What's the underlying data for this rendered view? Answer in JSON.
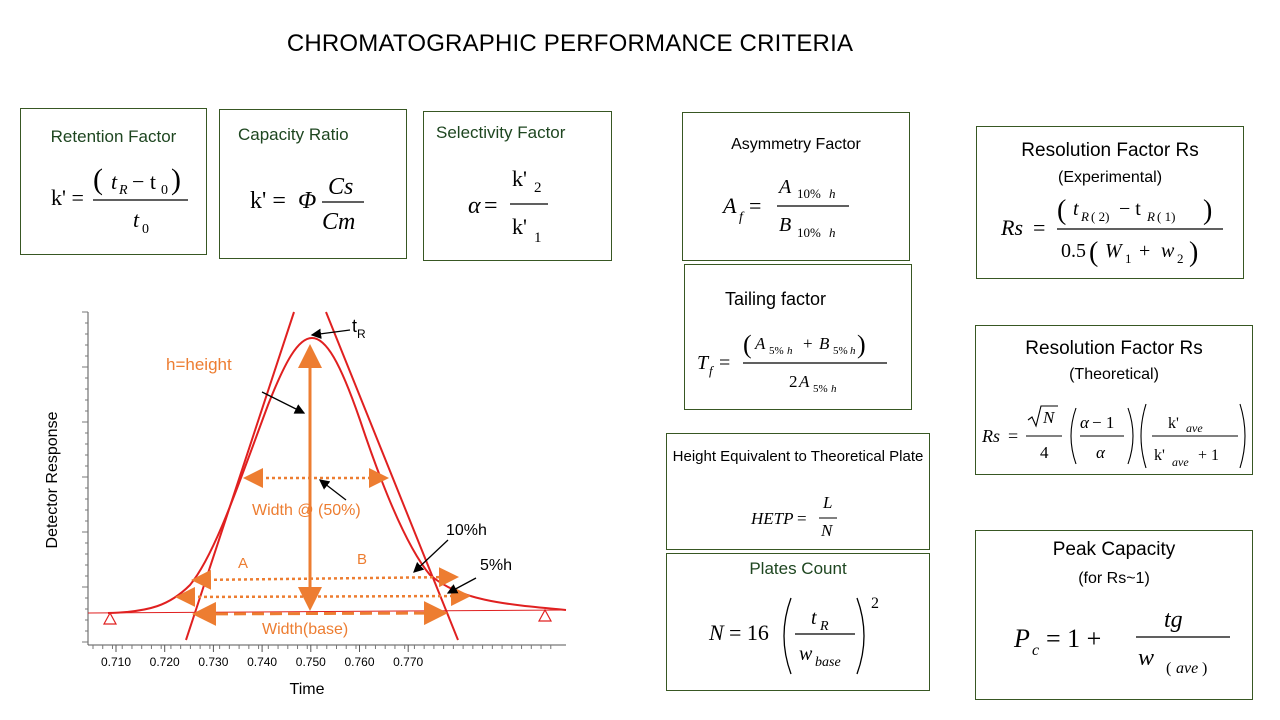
{
  "page": {
    "title": "CHROMATOGRAPHIC PERFORMANCE CRITERIA"
  },
  "boxes": {
    "retention": {
      "title": "Retention Factor"
    },
    "capacity": {
      "title": "Capacity Ratio"
    },
    "selectivity": {
      "title": "Selectivity Factor"
    },
    "asymmetry": {
      "title": "Asymmetry Factor"
    },
    "tailing": {
      "title": "Tailing factor"
    },
    "resolution_exp": {
      "title": "Resolution Factor Rs",
      "subtitle": "(Experimental)"
    },
    "resolution_theo": {
      "title": "Resolution Factor Rs",
      "subtitle": "(Theoretical)"
    },
    "hetp": {
      "title": "Height Equivalent to Theoretical Plate"
    },
    "plates": {
      "title": "Plates Count"
    },
    "peak_capacity": {
      "title": "Peak Capacity",
      "subtitle": "(for Rs~1)"
    }
  },
  "plot": {
    "ylabel": "Detector Response",
    "xlabel": "Time",
    "x_ticks": [
      "0.710",
      "0.720",
      "0.730",
      "0.740",
      "0.750",
      "0.760",
      "0.770"
    ],
    "labels": {
      "tr": "t",
      "tr_sub": "R",
      "height": "h=height",
      "width50": "Width @ (50%)",
      "a": "A",
      "b": "B",
      "ten_h": "10%h",
      "five_h": "5%h",
      "width_base": "Width(base)"
    },
    "colors": {
      "curve": "#e02020",
      "annot": "#ed7d31"
    }
  }
}
